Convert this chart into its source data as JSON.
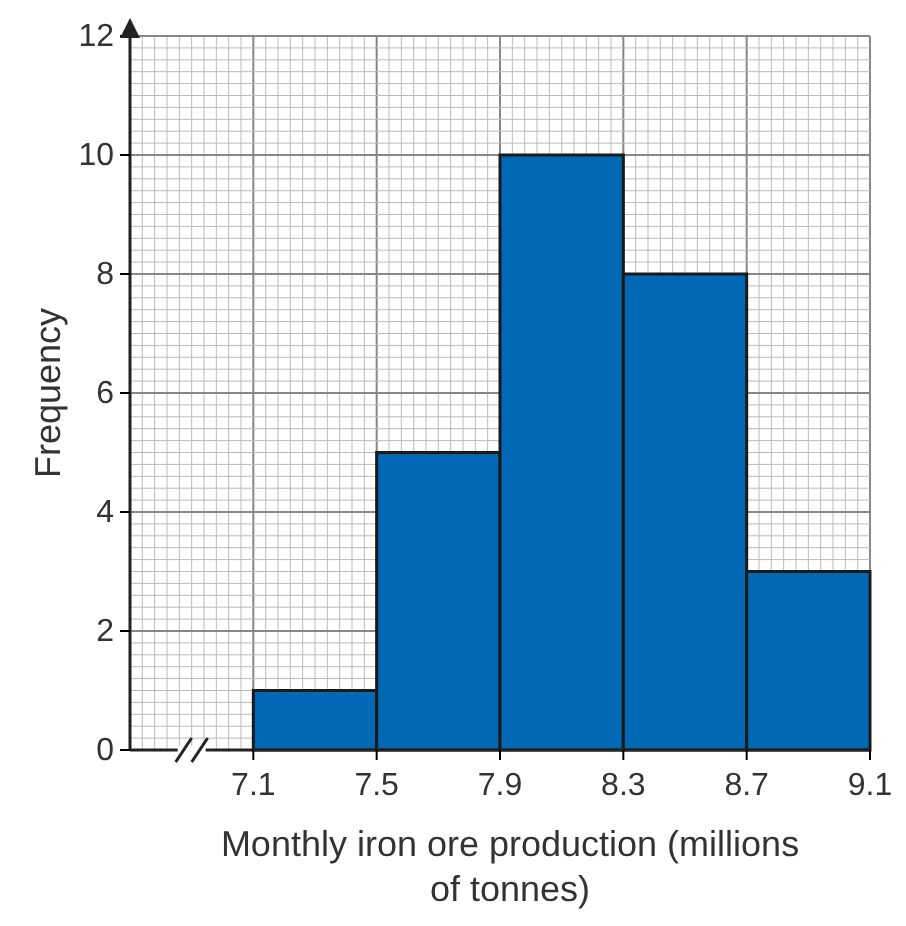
{
  "chart_data": {
    "type": "histogram",
    "xlabel": "Monthly iron ore production (millions of tonnes)",
    "ylabel": "Frequency",
    "bins": [
      7.1,
      7.5,
      7.9,
      8.3,
      8.7,
      9.1
    ],
    "values": [
      1,
      5,
      10,
      8,
      3
    ],
    "color": "#0068b4",
    "xlim": [
      6.7,
      9.1
    ],
    "xticks": [
      7.1,
      7.5,
      7.9,
      8.3,
      8.7,
      9.1
    ],
    "ylim": [
      0,
      12
    ],
    "yticks": [
      0,
      2,
      4,
      6,
      8,
      10,
      12
    ],
    "grid": true
  }
}
